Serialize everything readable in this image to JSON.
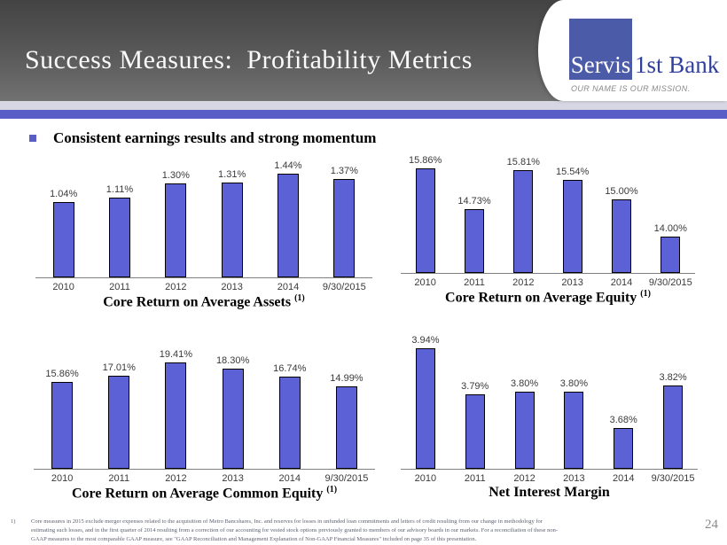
{
  "slide": {
    "title": "Success Measures:  Profitability Metrics",
    "bullet_text": "Consistent earnings results and strong momentum",
    "page_number": "24"
  },
  "logo": {
    "name_left": "Servis",
    "name_right": "1st Bank",
    "tagline": "OUR NAME IS OUR MISSION."
  },
  "footnote": {
    "marker": "1)",
    "lines": [
      "Core measures in 2015 exclude merger expenses related to the acquisition of Metro Bancshares, Inc. and reserves for losses in unfunded loan commitments and letters of credit resulting from our change in methodology for",
      "estimating such losses, and in the first quarter of 2014 resulting from a correction of our accounting for vested stock options previously granted to members of our advisory boards in our markets.  For a reconciliation of these non-",
      "GAAP measures to the most comparable GAAP measure, see \"GAAP Reconciliation and Management Explanation of Non-GAAP Financial Measures\" included on page 35 of this presentation."
    ]
  },
  "colors": {
    "bar_fill": "#5C62D6",
    "bar_border": "#000000",
    "accent_blue": "#5A5FC8",
    "stripe_light": "#D6D7E2",
    "logo_square": "#4C5BA8",
    "logo_text_blue": "#31409D"
  },
  "chart_data": [
    {
      "type": "bar",
      "title": "Core Return on Average Assets",
      "footnote_marker": "(1)",
      "categories": [
        "2010",
        "2011",
        "2012",
        "2013",
        "2014",
        "9/30/2015"
      ],
      "values": [
        1.04,
        1.11,
        1.3,
        1.31,
        1.44,
        1.37
      ],
      "labels": [
        "1.04%",
        "1.11%",
        "1.30%",
        "1.31%",
        "1.44%",
        "1.37%"
      ],
      "xlabel": "",
      "ylabel": "",
      "ylim": [
        0,
        1.5
      ],
      "grid": false,
      "legend": "none"
    },
    {
      "type": "bar",
      "title": "Core Return on Average Equity",
      "footnote_marker": "(1)",
      "categories": [
        "2010",
        "2011",
        "2012",
        "2013",
        "2014",
        "9/30/2015"
      ],
      "values": [
        15.86,
        14.73,
        15.81,
        15.54,
        15.0,
        14.0
      ],
      "labels": [
        "15.86%",
        "14.73%",
        "15.81%",
        "15.54%",
        "15.00%",
        "14.00%"
      ],
      "xlabel": "",
      "ylabel": "",
      "ylim": [
        13,
        16
      ],
      "grid": false,
      "legend": "none"
    },
    {
      "type": "bar",
      "title": "Core Return on Average Common  Equity",
      "footnote_marker": "(1)",
      "categories": [
        "2010",
        "2011",
        "2012",
        "2013",
        "2014",
        "9/30/2015"
      ],
      "values": [
        15.86,
        17.01,
        19.41,
        18.3,
        16.74,
        14.99
      ],
      "labels": [
        "15.86%",
        "17.01%",
        "19.41%",
        "18.30%",
        "16.74%",
        "14.99%"
      ],
      "xlabel": "",
      "ylabel": "",
      "ylim": [
        0,
        20
      ],
      "grid": false,
      "legend": "none"
    },
    {
      "type": "bar",
      "title": "Net Interest Margin",
      "footnote_marker": "",
      "categories": [
        "2010",
        "2011",
        "2012",
        "2013",
        "2014",
        "9/30/2015"
      ],
      "values": [
        3.94,
        3.79,
        3.8,
        3.8,
        3.68,
        3.82
      ],
      "labels": [
        "3.94%",
        "3.79%",
        "3.80%",
        "3.80%",
        "3.68%",
        "3.82%"
      ],
      "xlabel": "",
      "ylabel": "",
      "ylim": [
        3.55,
        3.95
      ],
      "grid": false,
      "legend": "none"
    }
  ]
}
